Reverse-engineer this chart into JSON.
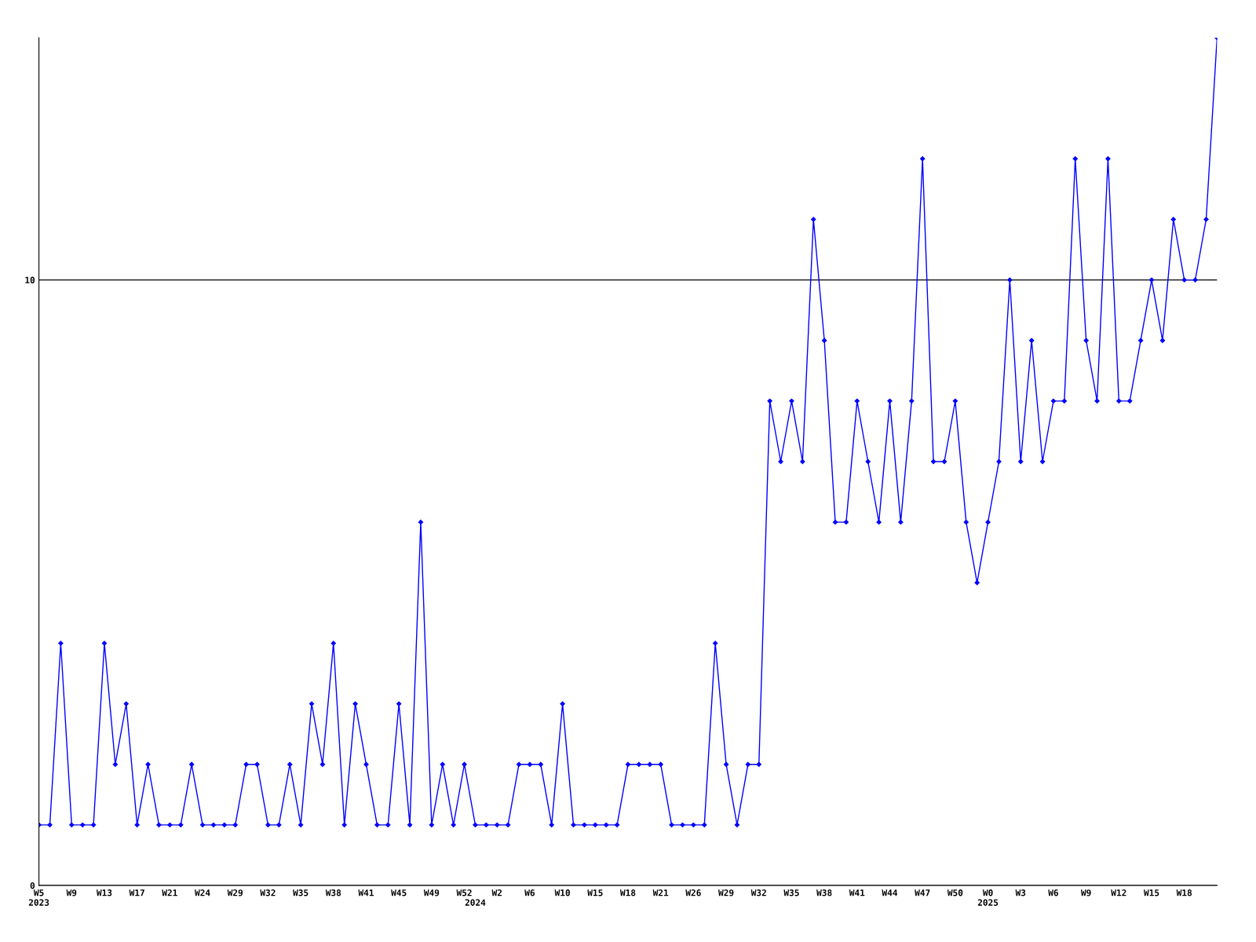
{
  "chart_data": {
    "type": "line",
    "categories": [
      "W5\n2023",
      null,
      null,
      "W9",
      null,
      null,
      "W13",
      null,
      null,
      "W17",
      null,
      null,
      "W21",
      null,
      null,
      "W24",
      null,
      null,
      "W29",
      null,
      null,
      "W32",
      null,
      null,
      "W35",
      null,
      null,
      "W38",
      null,
      null,
      "W41",
      null,
      null,
      "W45",
      null,
      null,
      "W49",
      null,
      null,
      "W52",
      "\n2024",
      null,
      "W2",
      null,
      null,
      "W6",
      null,
      null,
      "W10",
      null,
      null,
      "W15",
      null,
      null,
      "W18",
      null,
      null,
      "W21",
      null,
      null,
      "W26",
      null,
      null,
      "W29",
      null,
      null,
      "W32",
      null,
      null,
      "W35",
      null,
      null,
      "W38",
      null,
      null,
      "W41",
      null,
      null,
      "W44",
      null,
      null,
      "W47",
      null,
      null,
      "W50",
      null,
      null,
      "W0\n2025",
      null,
      null,
      "W3",
      null,
      null,
      "W6",
      null,
      null,
      "W9",
      null,
      null,
      "W12",
      null,
      null,
      "W15",
      null,
      null,
      "W18",
      null,
      null,
      null
    ],
    "series": [
      {
        "color": "#0000ff",
        "values": [
          1,
          1,
          4,
          1,
          1,
          1,
          4,
          2,
          3,
          1,
          2,
          1,
          1,
          1,
          2,
          1,
          1,
          1,
          1,
          2,
          2,
          1,
          1,
          2,
          1,
          3,
          2,
          4,
          1,
          3,
          2,
          1,
          1,
          3,
          1,
          6,
          1,
          2,
          1,
          2,
          1,
          1,
          1,
          1,
          2,
          2,
          2,
          1,
          3,
          1,
          1,
          1,
          1,
          1,
          2,
          2,
          2,
          2,
          1,
          1,
          1,
          1,
          4,
          2,
          1,
          2,
          2,
          8,
          7,
          8,
          7,
          11,
          9,
          6,
          6,
          8,
          7,
          6,
          8,
          6,
          8,
          12,
          7,
          7,
          8,
          6,
          5,
          6,
          7,
          10,
          7,
          9,
          7,
          8,
          8,
          12,
          9,
          8,
          12,
          8,
          8,
          9,
          10,
          9,
          11,
          10,
          10,
          11,
          14
        ]
      }
    ],
    "ylim": [
      0,
      14
    ],
    "yticks": [
      0,
      10
    ],
    "grid": "y",
    "marker": "diamond",
    "line_style": "solid"
  }
}
